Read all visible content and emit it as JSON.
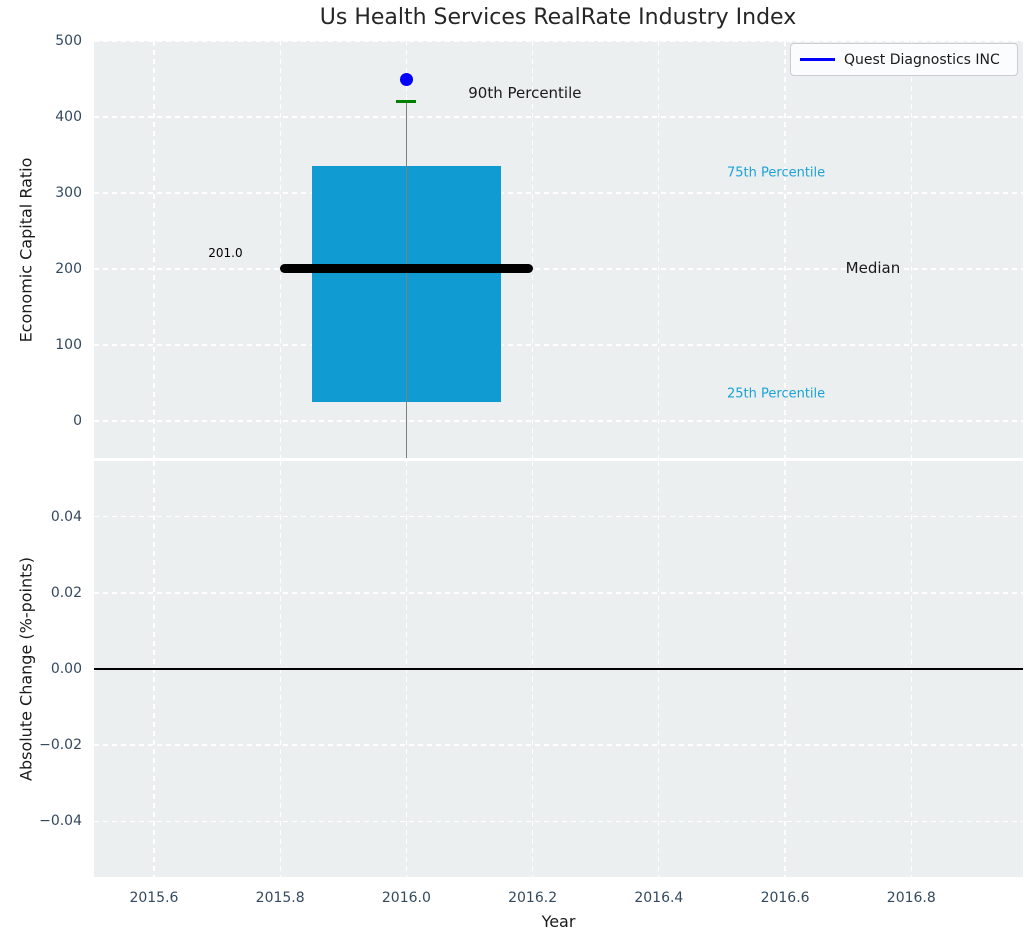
{
  "title": "Us Health Services RealRate Industry Index",
  "legend": {
    "label": "Quest Diagnostics INC"
  },
  "colors": {
    "figure_bg": "#FFFFFF",
    "axes_bg": "#EBEFF0",
    "grid": "#FFFFFF",
    "tick_label": "#34495E",
    "text": "#1A1A1A",
    "title_text": "#262626",
    "box_fill": "#109CD2",
    "percentile_label": "#1CA2D6",
    "whisker": "#7F7F7F",
    "cap_90th": "#008000",
    "company_point": "#0000FF",
    "legend_line": "#0000FF",
    "zero_line": "#000000",
    "median_line": "#000000"
  },
  "chart_data": [
    {
      "type": "boxplot",
      "panel": "top",
      "title": "Us Health Services RealRate Industry Index",
      "ylabel": "Economic Capital Ratio",
      "xlim": [
        2015.505,
        2016.977
      ],
      "ylim": [
        -48.6,
        500
      ],
      "yticks": [
        0,
        100,
        200,
        300,
        400,
        500
      ],
      "ytick_labels": [
        "0",
        "100",
        "200",
        "300",
        "400",
        "500"
      ],
      "xticks": [
        2015.6,
        2015.8,
        2016.0,
        2016.2,
        2016.4,
        2016.6,
        2016.8
      ],
      "grid": true,
      "legend_position": "upper right",
      "box": {
        "x_center": 2016.0,
        "x_left": 2015.85,
        "x_right": 2016.15,
        "percentile_25": 25,
        "percentile_75": 335,
        "median": 201.0,
        "percentile_90": 420,
        "median_line_x_left": 2015.8,
        "median_line_x_right": 2016.2,
        "whisker_bottom_clipped_at_axis": true
      },
      "company_point": {
        "name": "Quest Diagnostics INC",
        "x": 2016.0,
        "y": 450
      },
      "annotations": [
        {
          "name": "median-value-label",
          "text": "201.0",
          "x": 2015.686,
          "y": 221,
          "color": "#000000",
          "font_size": 12
        },
        {
          "name": "p90-label",
          "text": "90th Percentile",
          "x": 2016.098,
          "y": 431,
          "color": "#1a1a1a",
          "font_size": 15
        },
        {
          "name": "p75-label",
          "text": "75th Percentile",
          "x": 2016.508,
          "y": 326,
          "color": "#1CA2D6",
          "font_size": 13
        },
        {
          "name": "median-label",
          "text": "Median",
          "x": 2016.696,
          "y": 202,
          "color": "#1a1a1a",
          "font_size": 15
        },
        {
          "name": "p25-label",
          "text": "25th Percentile",
          "x": 2016.508,
          "y": 35,
          "color": "#1CA2D6",
          "font_size": 13
        }
      ]
    },
    {
      "type": "line",
      "panel": "bottom",
      "ylabel": "Absolute Change (%-points)",
      "xlabel": "Year",
      "xlim": [
        2015.505,
        2016.977
      ],
      "ylim": [
        -0.0547,
        0.0547
      ],
      "yticks": [
        -0.04,
        -0.02,
        0.0,
        0.02,
        0.04
      ],
      "ytick_labels": [
        "−0.04",
        "−0.02",
        "0.00",
        "0.02",
        "0.04"
      ],
      "xticks": [
        2015.6,
        2015.8,
        2016.0,
        2016.2,
        2016.4,
        2016.6,
        2016.8
      ],
      "xtick_labels": [
        "2015.6",
        "2015.8",
        "2016.0",
        "2016.2",
        "2016.4",
        "2016.6",
        "2016.8"
      ],
      "grid": true,
      "zero_line_y": 0.0,
      "series": []
    }
  ]
}
